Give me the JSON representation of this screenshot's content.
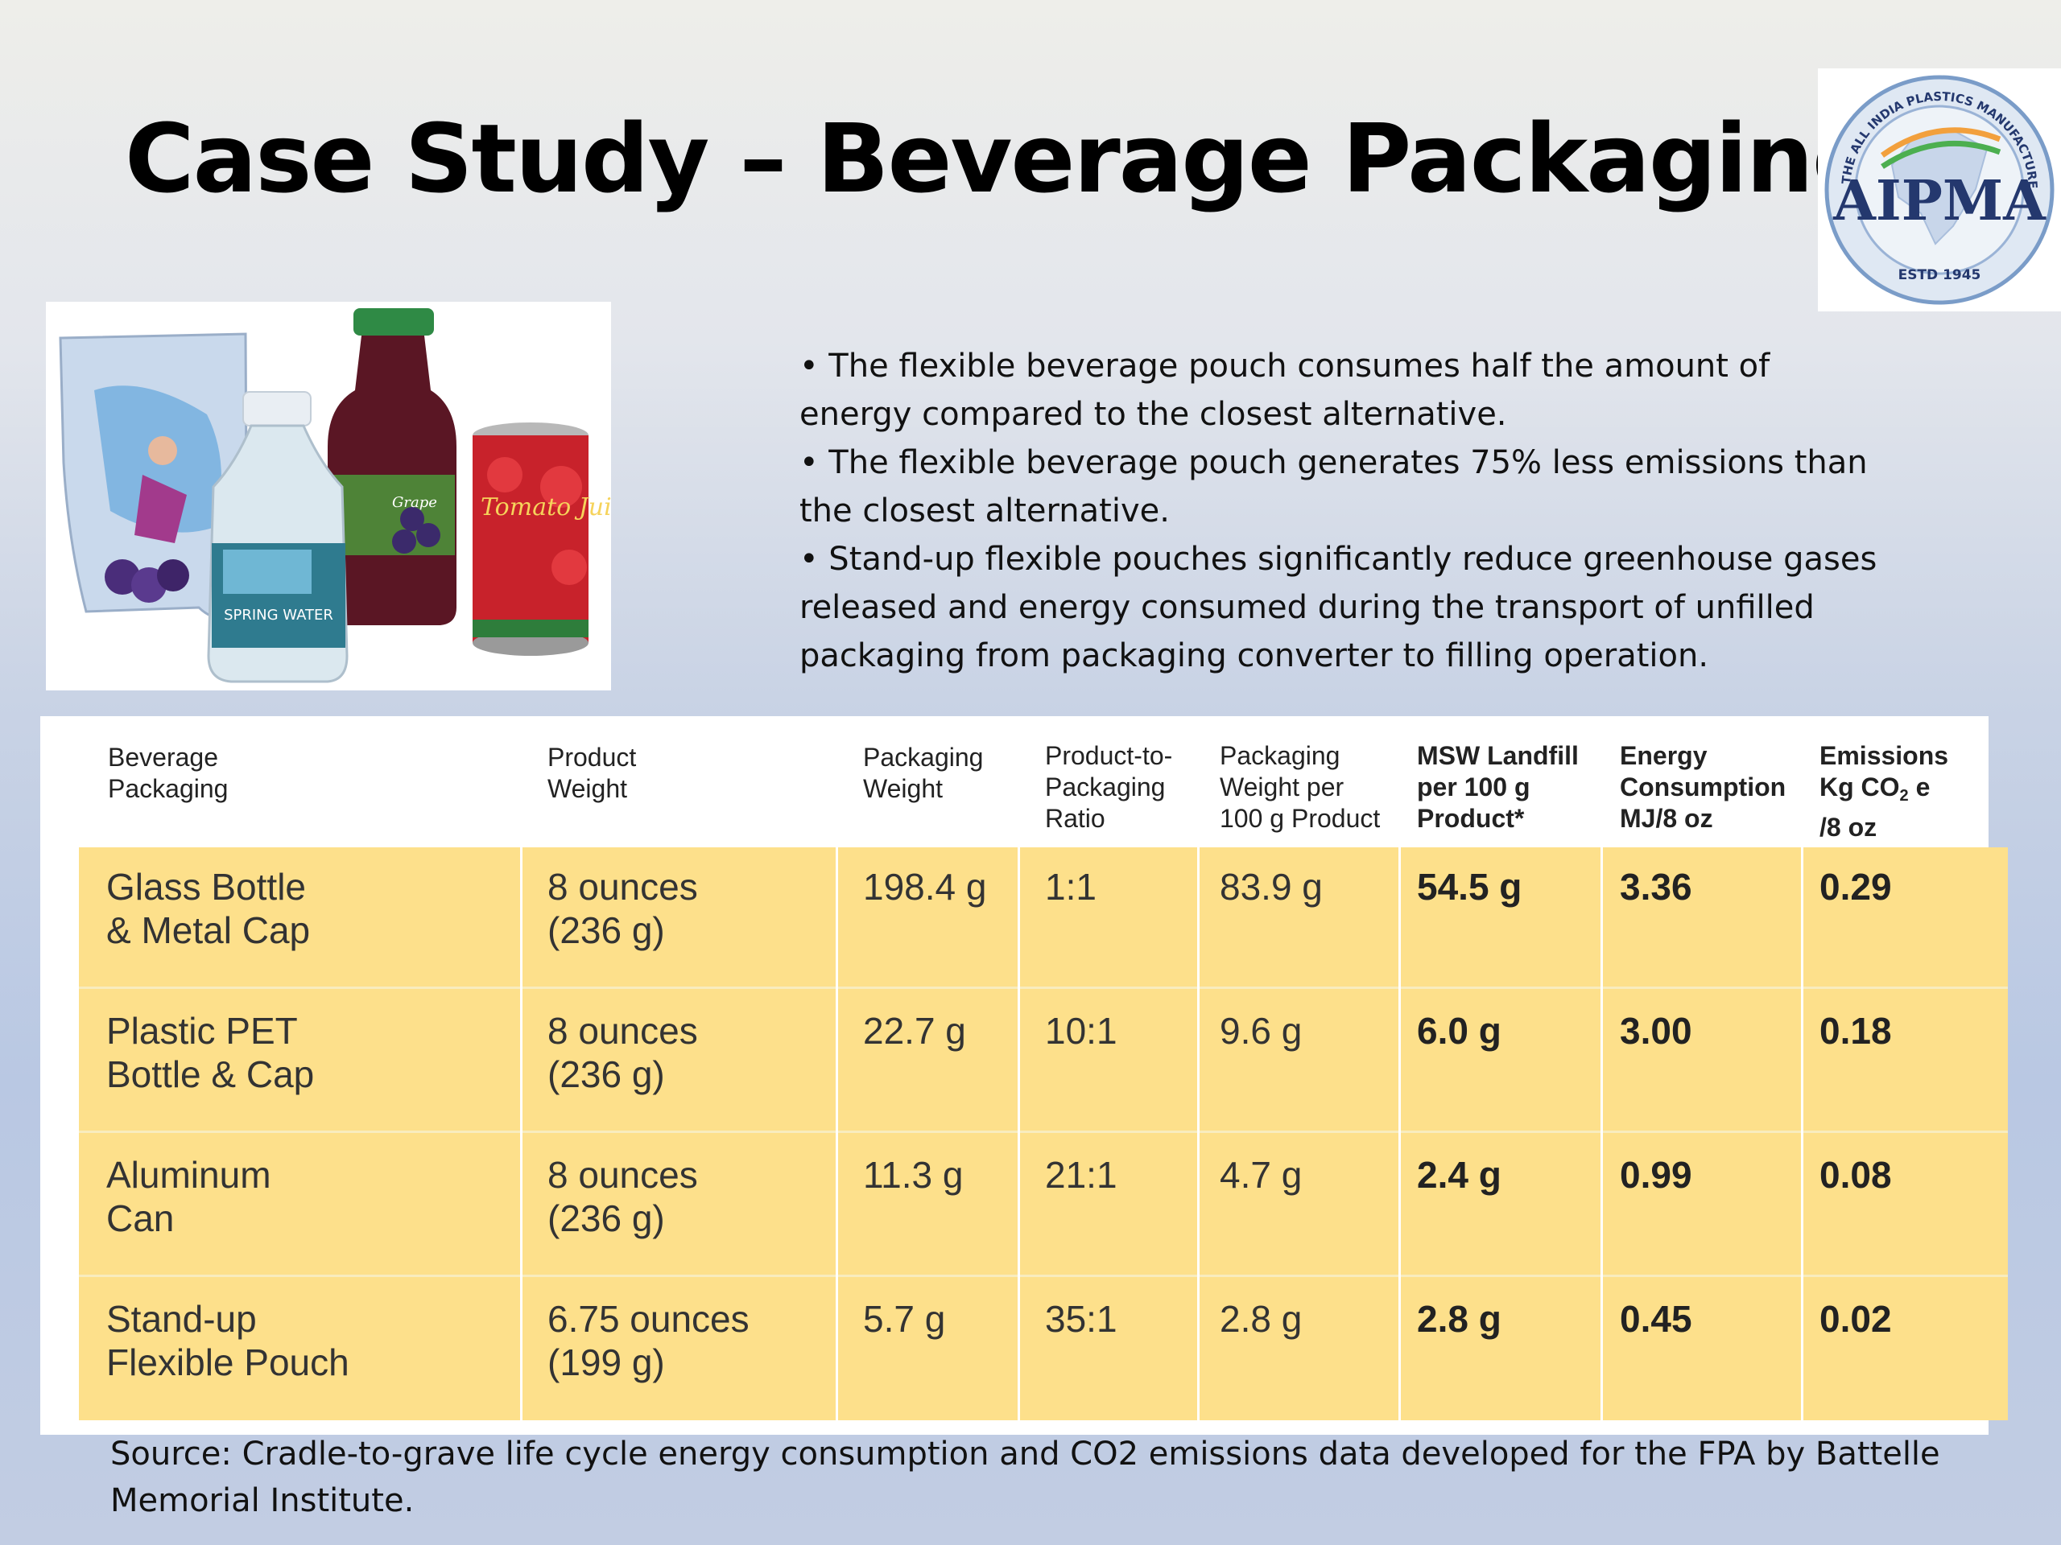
{
  "slide": {
    "title": "Case Study – Beverage Packaging",
    "logo": {
      "text": "AIPMA",
      "ring_text": "THE ALL INDIA PLASTICS MANUFACTURERS' ASSOCIATION",
      "estd": "ESTD 1945"
    },
    "photo": {
      "labels": [
        "SPRING WATER",
        "Grape",
        "Tomato Juice"
      ]
    },
    "bullets": [
      "• The flexible beverage pouch consumes half the amount of energy compared to the closest alternative.",
      "• The flexible beverage pouch generates 75% less emissions than the closest alternative.",
      "• Stand-up flexible pouches significantly reduce greenhouse gases released and energy consumed during the transport of unfilled packaging from packaging converter to filling operation."
    ],
    "source": "Source: Cradle-to-grave life cycle energy consumption and CO2 emissions data developed for the FPA by Battelle Memorial Institute."
  },
  "table": {
    "headers": [
      "Beverage\nPackaging",
      "Product\nWeight",
      "Packaging\nWeight",
      "Product-to-\nPackaging\nRatio",
      "Packaging\nWeight per\n100 g Product",
      "MSW Landfill\nper 100 g\nProduct*",
      "Energy\nConsumption\nMJ/8 oz",
      {
        "line1_pre": "Emissions",
        "line2_pre": "Kg CO",
        "sub": "2",
        "line2_post": " e",
        "line3": "/8 oz"
      }
    ],
    "rows": [
      [
        "Glass Bottle\n& Metal Cap",
        "8 ounces\n(236 g)",
        "198.4 g",
        "1:1",
        "83.9 g",
        "54.5 g",
        "3.36",
        "0.29"
      ],
      [
        "Plastic PET\nBottle & Cap",
        "8 ounces\n(236 g)",
        "22.7 g",
        "10:1",
        "9.6 g",
        "6.0 g",
        "3.00",
        "0.18"
      ],
      [
        "Aluminum\nCan",
        "8 ounces\n(236 g)",
        "11.3 g",
        "21:1",
        "4.7 g",
        "2.4 g",
        "0.99",
        "0.08"
      ],
      [
        "Stand-up\nFlexible Pouch",
        "6.75 ounces\n(199 g)",
        "5.7 g",
        "35:1",
        "2.8 g",
        "2.8 g",
        "0.45",
        "0.02"
      ]
    ],
    "colors": {
      "row_fill": "#fde08b",
      "panel": "#ffffff"
    }
  }
}
